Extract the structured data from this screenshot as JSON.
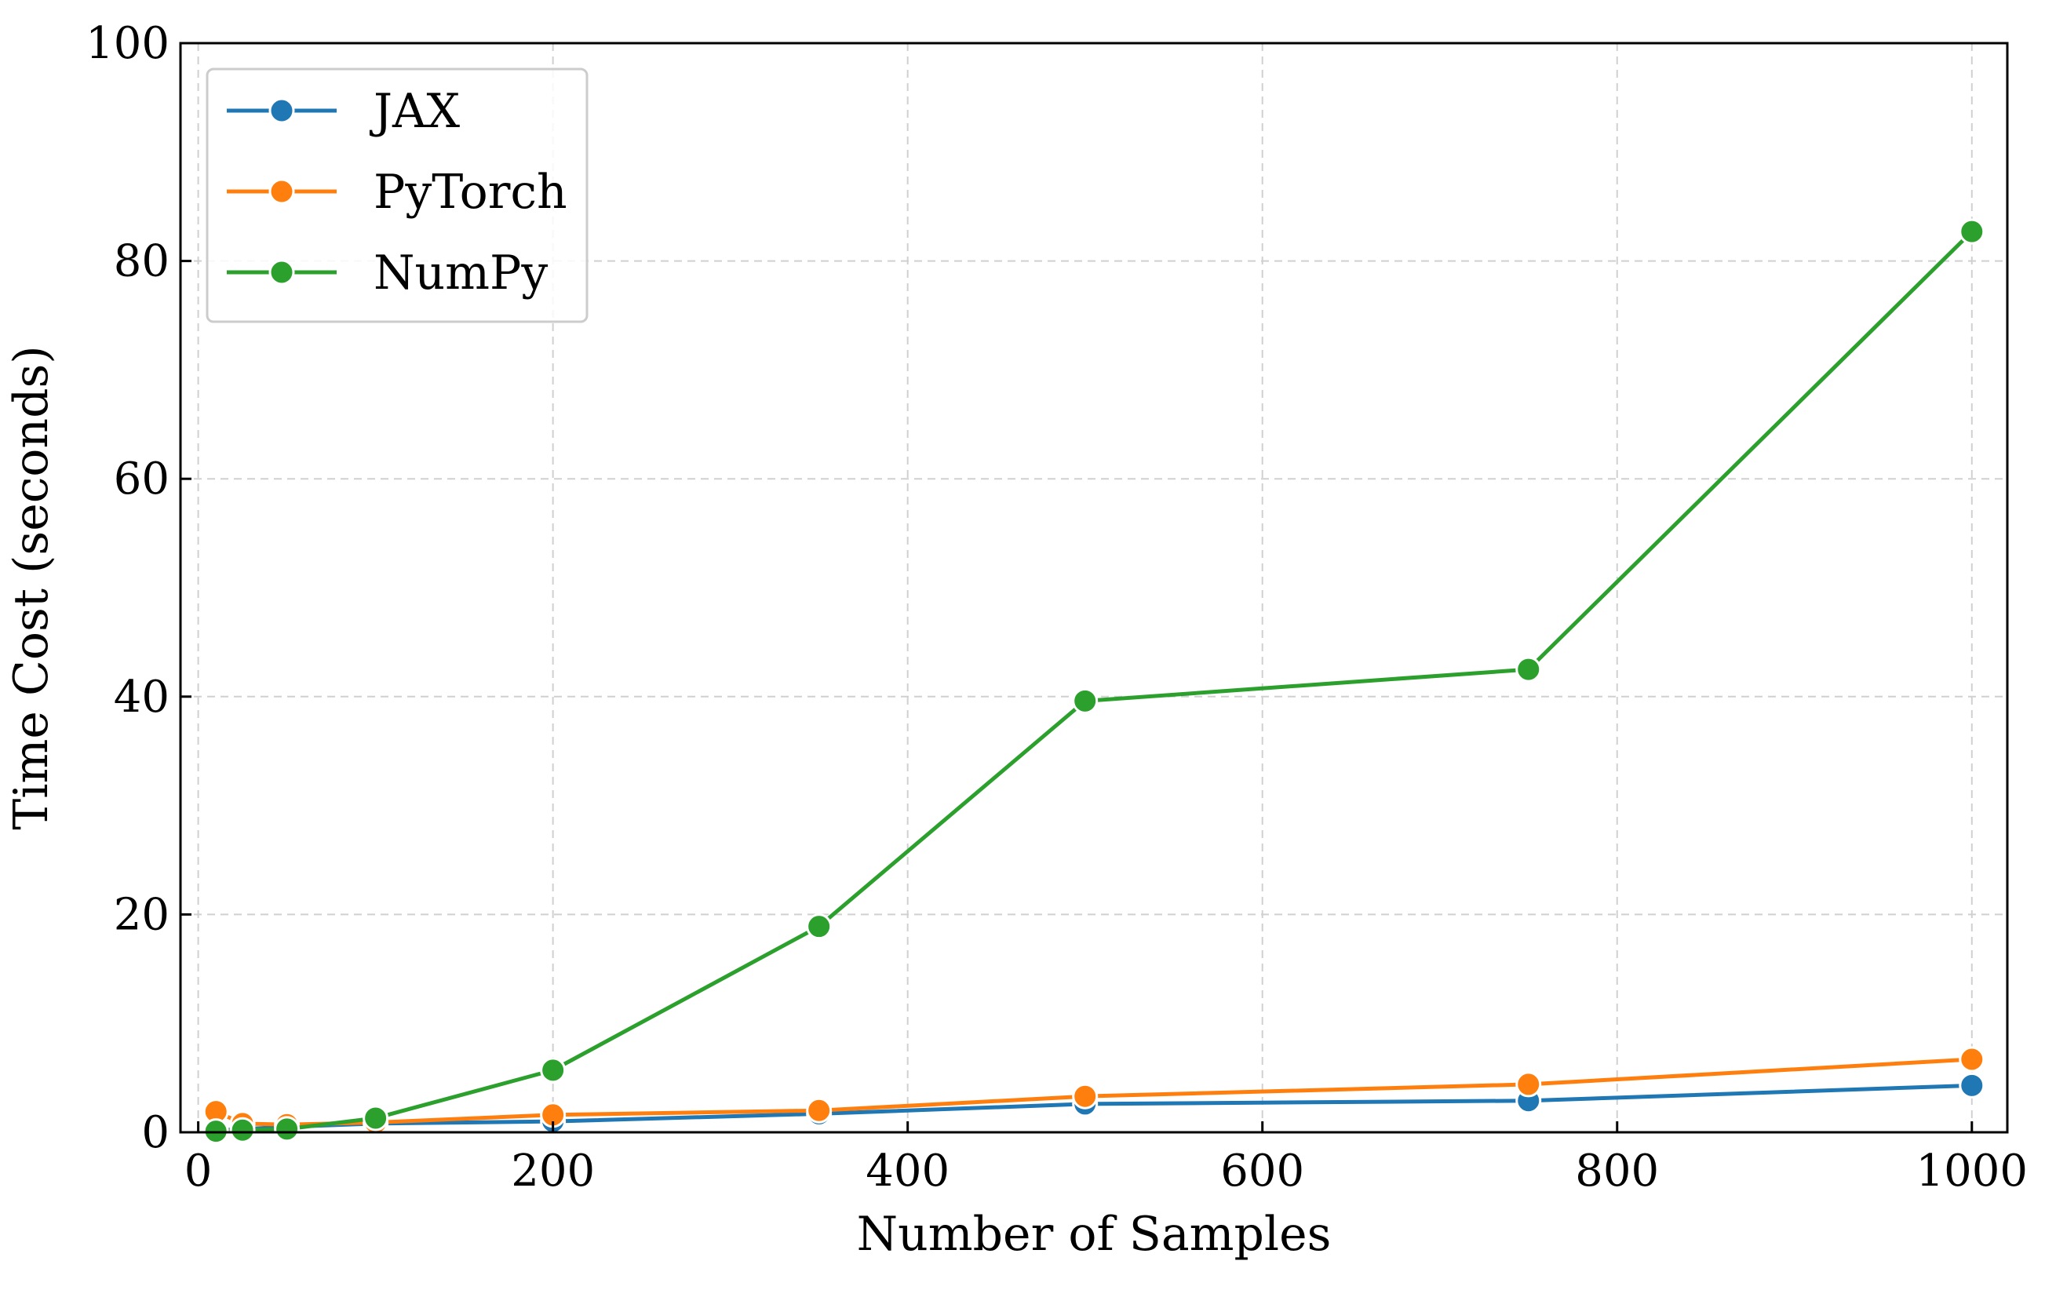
{
  "chart_data": {
    "type": "line",
    "title": "",
    "xlabel": "Number of Samples",
    "ylabel": "Time Cost (seconds)",
    "xlim": [
      -10,
      1020
    ],
    "ylim": [
      0,
      100
    ],
    "xticks": [
      0,
      200,
      400,
      600,
      800,
      1000
    ],
    "yticks": [
      0,
      20,
      40,
      60,
      80,
      100
    ],
    "grid": true,
    "legend_position": "top-left",
    "x": [
      10,
      25,
      50,
      100,
      200,
      350,
      500,
      750,
      1000
    ],
    "series": [
      {
        "name": "JAX",
        "color": "#1f77b4",
        "values": [
          0.2,
          0.3,
          0.5,
          0.8,
          1.0,
          1.7,
          2.6,
          2.9,
          4.3
        ]
      },
      {
        "name": "PyTorch",
        "color": "#ff7f0e",
        "values": [
          1.9,
          0.8,
          0.7,
          0.9,
          1.6,
          2.0,
          3.3,
          4.4,
          6.7
        ]
      },
      {
        "name": "NumPy",
        "color": "#2ca02c",
        "values": [
          0.1,
          0.2,
          0.3,
          1.3,
          5.7,
          18.9,
          39.6,
          42.5,
          82.7
        ]
      }
    ]
  }
}
